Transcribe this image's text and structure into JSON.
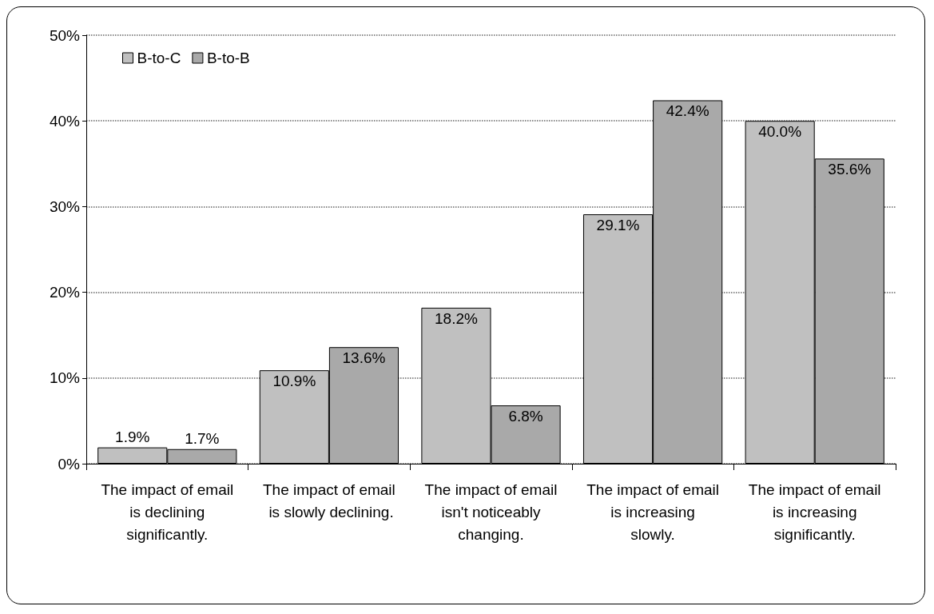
{
  "chart_data": {
    "type": "bar",
    "categories": [
      "The impact of email is declining significantly.",
      "The impact of email is slowly declining.",
      "The impact of email isn't noticeably changing.",
      "The impact of email is increasing slowly.",
      "The impact of email is increasing significantly."
    ],
    "series": [
      {
        "name": "B-to-C",
        "color": "#c0c0c0",
        "values": [
          1.9,
          10.9,
          18.2,
          29.1,
          40.0
        ],
        "value_labels": [
          "1.9%",
          "10.9%",
          "18.2%",
          "29.1%",
          "40.0%"
        ]
      },
      {
        "name": "B-to-B",
        "color": "#a9a9a9",
        "values": [
          1.7,
          13.6,
          6.8,
          42.4,
          35.6
        ],
        "value_labels": [
          "1.7%",
          "13.6%",
          "6.8%",
          "42.4%",
          "35.6%"
        ]
      }
    ],
    "ylim": [
      0,
      50
    ],
    "yticks": [
      {
        "value": 0,
        "label": "0%"
      },
      {
        "value": 10,
        "label": "10%"
      },
      {
        "value": 20,
        "label": "20%"
      },
      {
        "value": 30,
        "label": "30%"
      },
      {
        "value": 40,
        "label": "40%"
      },
      {
        "value": 50,
        "label": "50%"
      }
    ],
    "grid": "y",
    "legend": "top left"
  }
}
